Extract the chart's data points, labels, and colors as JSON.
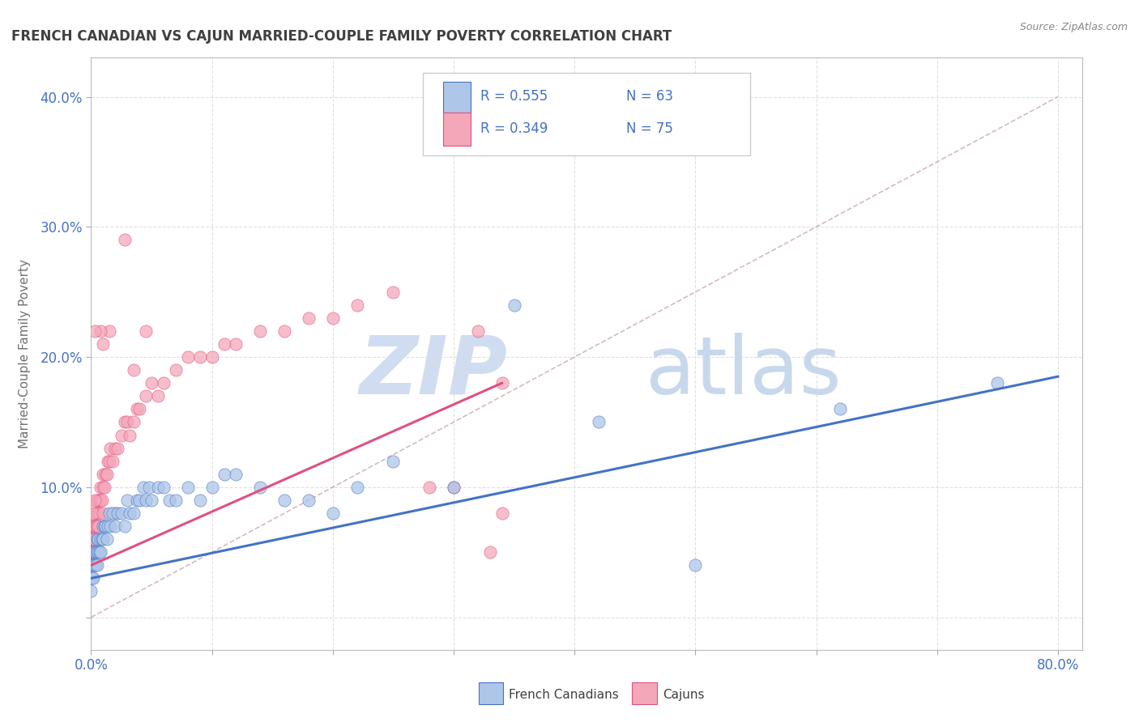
{
  "title": "FRENCH CANADIAN VS CAJUN MARRIED-COUPLE FAMILY POVERTY CORRELATION CHART",
  "source": "Source: ZipAtlas.com",
  "ylabel": "Married-Couple Family Poverty",
  "xlim": [
    0.0,
    0.82
  ],
  "ylim": [
    -0.025,
    0.43
  ],
  "xticks": [
    0.0,
    0.1,
    0.2,
    0.3,
    0.4,
    0.5,
    0.6,
    0.7,
    0.8
  ],
  "xticklabels": [
    "0.0%",
    "",
    "",
    "",
    "",
    "",
    "",
    "",
    "80.0%"
  ],
  "yticks": [
    0.0,
    0.1,
    0.2,
    0.3,
    0.4
  ],
  "yticklabels": [
    "",
    "10.0%",
    "20.0%",
    "30.0%",
    "40.0%"
  ],
  "legend_r1": "R = 0.555",
  "legend_n1": "N = 63",
  "legend_r2": "R = 0.349",
  "legend_n2": "N = 75",
  "blue_color": "#AEC6E8",
  "pink_color": "#F4A7B9",
  "blue_line_color": "#4472C4",
  "pink_line_color": "#E05080",
  "grid_color": "#DDDDDD",
  "title_color": "#404040",
  "axis_label_color": "#707070",
  "tick_label_color": "#4472C4",
  "blue_scatter_x": [
    0.0,
    0.0,
    0.0,
    0.001,
    0.001,
    0.002,
    0.002,
    0.003,
    0.003,
    0.004,
    0.004,
    0.005,
    0.005,
    0.005,
    0.006,
    0.006,
    0.007,
    0.008,
    0.008,
    0.009,
    0.01,
    0.01,
    0.011,
    0.012,
    0.013,
    0.014,
    0.015,
    0.016,
    0.018,
    0.02,
    0.022,
    0.025,
    0.028,
    0.03,
    0.032,
    0.035,
    0.038,
    0.04,
    0.043,
    0.045,
    0.048,
    0.05,
    0.055,
    0.06,
    0.065,
    0.07,
    0.08,
    0.09,
    0.1,
    0.11,
    0.12,
    0.14,
    0.16,
    0.18,
    0.2,
    0.22,
    0.25,
    0.3,
    0.35,
    0.42,
    0.5,
    0.62,
    0.75
  ],
  "blue_scatter_y": [
    0.02,
    0.03,
    0.04,
    0.03,
    0.05,
    0.04,
    0.03,
    0.05,
    0.04,
    0.04,
    0.05,
    0.05,
    0.04,
    0.06,
    0.05,
    0.06,
    0.05,
    0.06,
    0.05,
    0.06,
    0.06,
    0.07,
    0.07,
    0.07,
    0.06,
    0.07,
    0.08,
    0.07,
    0.08,
    0.07,
    0.08,
    0.08,
    0.07,
    0.09,
    0.08,
    0.08,
    0.09,
    0.09,
    0.1,
    0.09,
    0.1,
    0.09,
    0.1,
    0.1,
    0.09,
    0.09,
    0.1,
    0.09,
    0.1,
    0.11,
    0.11,
    0.1,
    0.09,
    0.09,
    0.08,
    0.1,
    0.12,
    0.1,
    0.24,
    0.15,
    0.04,
    0.16,
    0.18
  ],
  "pink_scatter_x": [
    0.0,
    0.0,
    0.0,
    0.001,
    0.001,
    0.001,
    0.002,
    0.002,
    0.002,
    0.003,
    0.003,
    0.004,
    0.004,
    0.005,
    0.005,
    0.005,
    0.006,
    0.006,
    0.006,
    0.007,
    0.007,
    0.008,
    0.008,
    0.009,
    0.01,
    0.01,
    0.011,
    0.012,
    0.013,
    0.014,
    0.015,
    0.016,
    0.018,
    0.02,
    0.022,
    0.025,
    0.028,
    0.03,
    0.032,
    0.035,
    0.038,
    0.04,
    0.045,
    0.05,
    0.055,
    0.06,
    0.07,
    0.08,
    0.09,
    0.1,
    0.11,
    0.12,
    0.14,
    0.16,
    0.18,
    0.2,
    0.22,
    0.25,
    0.28,
    0.3,
    0.32,
    0.33,
    0.34,
    0.34,
    0.035,
    0.045,
    0.028,
    0.015,
    0.008,
    0.003,
    0.003,
    0.002,
    0.01,
    0.02,
    0.01
  ],
  "pink_scatter_y": [
    0.04,
    0.05,
    0.06,
    0.05,
    0.06,
    0.07,
    0.05,
    0.06,
    0.07,
    0.06,
    0.07,
    0.07,
    0.08,
    0.07,
    0.08,
    0.09,
    0.07,
    0.08,
    0.09,
    0.08,
    0.09,
    0.09,
    0.1,
    0.09,
    0.1,
    0.11,
    0.1,
    0.11,
    0.11,
    0.12,
    0.12,
    0.13,
    0.12,
    0.13,
    0.13,
    0.14,
    0.15,
    0.15,
    0.14,
    0.15,
    0.16,
    0.16,
    0.17,
    0.18,
    0.17,
    0.18,
    0.19,
    0.2,
    0.2,
    0.2,
    0.21,
    0.21,
    0.22,
    0.22,
    0.23,
    0.23,
    0.24,
    0.25,
    0.1,
    0.1,
    0.22,
    0.05,
    0.08,
    0.18,
    0.19,
    0.22,
    0.29,
    0.22,
    0.22,
    0.22,
    0.09,
    0.08,
    0.08,
    0.08,
    0.21
  ],
  "blue_line_x": [
    0.0,
    0.8
  ],
  "blue_line_y": [
    0.03,
    0.185
  ],
  "pink_line_x": [
    0.0,
    0.34
  ],
  "pink_line_y": [
    0.04,
    0.18
  ],
  "ref_line_x": [
    0.0,
    0.8
  ],
  "ref_line_y": [
    0.0,
    0.4
  ]
}
